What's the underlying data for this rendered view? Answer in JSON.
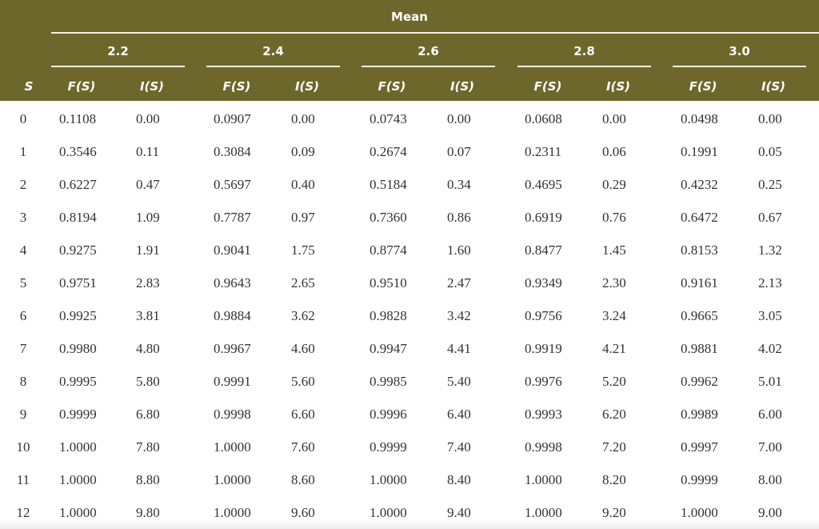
{
  "table": {
    "header_color": "#6e672b",
    "super_header": "Mean",
    "row_header": "S",
    "groups": [
      {
        "mean": "2.2",
        "col_f": "F(S)",
        "col_i": "I(S)"
      },
      {
        "mean": "2.4",
        "col_f": "F(S)",
        "col_i": "I(S)"
      },
      {
        "mean": "2.6",
        "col_f": "F(S)",
        "col_i": "I(S)"
      },
      {
        "mean": "2.8",
        "col_f": "F(S)",
        "col_i": "I(S)"
      },
      {
        "mean": "3.0",
        "col_f": "F(S)",
        "col_i": "I(S)"
      }
    ],
    "rows": [
      {
        "s": "0",
        "v": [
          "0.1108",
          "0.00",
          "0.0907",
          "0.00",
          "0.0743",
          "0.00",
          "0.0608",
          "0.00",
          "0.0498",
          "0.00"
        ]
      },
      {
        "s": "1",
        "v": [
          "0.3546",
          "0.11",
          "0.3084",
          "0.09",
          "0.2674",
          "0.07",
          "0.2311",
          "0.06",
          "0.1991",
          "0.05"
        ]
      },
      {
        "s": "2",
        "v": [
          "0.6227",
          "0.47",
          "0.5697",
          "0.40",
          "0.5184",
          "0.34",
          "0.4695",
          "0.29",
          "0.4232",
          "0.25"
        ]
      },
      {
        "s": "3",
        "v": [
          "0.8194",
          "1.09",
          "0.7787",
          "0.97",
          "0.7360",
          "0.86",
          "0.6919",
          "0.76",
          "0.6472",
          "0.67"
        ]
      },
      {
        "s": "4",
        "v": [
          "0.9275",
          "1.91",
          "0.9041",
          "1.75",
          "0.8774",
          "1.60",
          "0.8477",
          "1.45",
          "0.8153",
          "1.32"
        ]
      },
      {
        "s": "5",
        "v": [
          "0.9751",
          "2.83",
          "0.9643",
          "2.65",
          "0.9510",
          "2.47",
          "0.9349",
          "2.30",
          "0.9161",
          "2.13"
        ]
      },
      {
        "s": "6",
        "v": [
          "0.9925",
          "3.81",
          "0.9884",
          "3.62",
          "0.9828",
          "3.42",
          "0.9756",
          "3.24",
          "0.9665",
          "3.05"
        ]
      },
      {
        "s": "7",
        "v": [
          "0.9980",
          "4.80",
          "0.9967",
          "4.60",
          "0.9947",
          "4.41",
          "0.9919",
          "4.21",
          "0.9881",
          "4.02"
        ]
      },
      {
        "s": "8",
        "v": [
          "0.9995",
          "5.80",
          "0.9991",
          "5.60",
          "0.9985",
          "5.40",
          "0.9976",
          "5.20",
          "0.9962",
          "5.01"
        ]
      },
      {
        "s": "9",
        "v": [
          "0.9999",
          "6.80",
          "0.9998",
          "6.60",
          "0.9996",
          "6.40",
          "0.9993",
          "6.20",
          "0.9989",
          "6.00"
        ]
      },
      {
        "s": "10",
        "v": [
          "1.0000",
          "7.80",
          "1.0000",
          "7.60",
          "0.9999",
          "7.40",
          "0.9998",
          "7.20",
          "0.9997",
          "7.00"
        ]
      },
      {
        "s": "11",
        "v": [
          "1.0000",
          "8.80",
          "1.0000",
          "8.60",
          "1.0000",
          "8.40",
          "1.0000",
          "8.20",
          "0.9999",
          "8.00"
        ]
      },
      {
        "s": "12",
        "v": [
          "1.0000",
          "9.80",
          "1.0000",
          "9.60",
          "1.0000",
          "9.40",
          "1.0000",
          "9.20",
          "1.0000",
          "9.00"
        ]
      }
    ]
  }
}
